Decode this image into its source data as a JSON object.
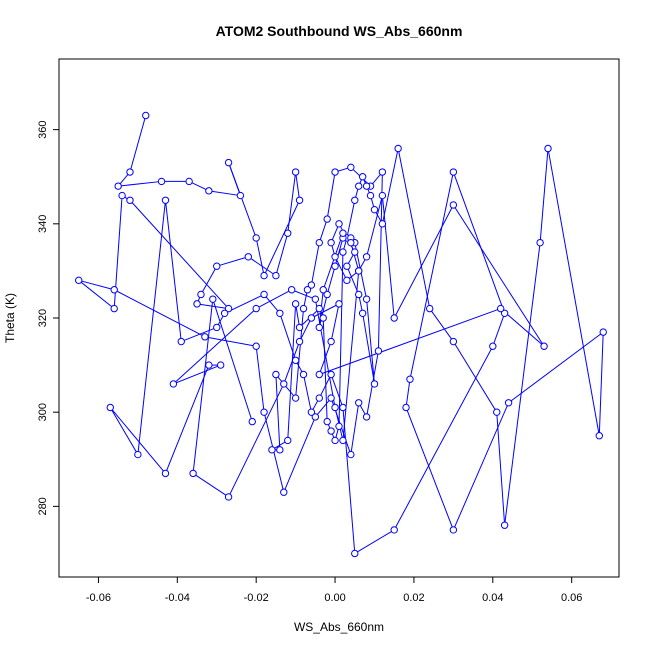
{
  "chart_data": {
    "type": "line",
    "title": "ATOM2 Southbound WS_Abs_660nm",
    "xlabel": "WS_Abs_660nm",
    "ylabel": "Theta (K)",
    "xlim": [
      -0.07,
      0.072
    ],
    "ylim": [
      265,
      375
    ],
    "xticks": [
      "-0.06",
      "-0.04",
      "-0.02",
      "0.00",
      "0.02",
      "0.04",
      "0.06"
    ],
    "xtick_values": [
      -0.06,
      -0.04,
      -0.02,
      0.0,
      0.02,
      0.04,
      0.06
    ],
    "yticks": [
      "280",
      "300",
      "320",
      "340",
      "360"
    ],
    "ytick_values": [
      280,
      300,
      320,
      340,
      360
    ],
    "marker": "open-circle",
    "series_color": "#0000ff",
    "grid": false,
    "series": [
      {
        "x": [
          -0.048,
          -0.052,
          -0.055,
          -0.044,
          -0.037,
          -0.032,
          -0.024,
          -0.027,
          -0.02,
          -0.018,
          -0.009,
          -0.01,
          -0.012,
          -0.015,
          -0.022,
          -0.03,
          -0.034,
          -0.035,
          -0.027,
          -0.052,
          -0.054,
          -0.056,
          -0.065,
          -0.056,
          -0.033,
          -0.02,
          -0.018,
          -0.013,
          -0.005,
          -0.001,
          0.004,
          0.006,
          0.008,
          0.011,
          0.012,
          0.009,
          0.004,
          0.0,
          -0.002,
          -0.004,
          -0.006,
          -0.007,
          -0.008,
          -0.01,
          -0.015,
          -0.014,
          -0.016,
          -0.012,
          -0.01,
          -0.009,
          -0.004,
          -0.003,
          -0.002,
          -0.001,
          0.0,
          0.001,
          0.002,
          0.003,
          0.005,
          0.006,
          0.007,
          0.008,
          0.009,
          0.01,
          0.012,
          0.016,
          0.024,
          0.03,
          0.041,
          0.043,
          0.052,
          0.054,
          0.067,
          0.068,
          0.044,
          0.03,
          0.018,
          0.019,
          0.03,
          0.043,
          0.04,
          0.015,
          0.005,
          0.002,
          -0.001,
          -0.004,
          -0.006,
          -0.008,
          -0.01,
          -0.014,
          -0.018,
          -0.028,
          -0.03,
          -0.039,
          -0.043,
          -0.05,
          -0.057,
          -0.043,
          -0.032,
          -0.029,
          -0.041,
          -0.02,
          -0.011,
          -0.005,
          0.0,
          0.002,
          0.006,
          0.003,
          0.0,
          -0.001,
          0.001,
          0.005,
          0.003,
          0.006,
          0.007,
          0.01,
          0.008,
          0.005,
          0.004,
          0.002,
          0.0,
          -0.002,
          -0.004,
          -0.003,
          0.002,
          0.004,
          0.006,
          0.008,
          0.012,
          0.015,
          0.03,
          0.053,
          0.042,
          -0.004,
          -0.001,
          0.001,
          -0.006,
          -0.009,
          -0.013,
          -0.027,
          -0.036,
          -0.031,
          -0.021
        ],
        "y": [
          363,
          351,
          348,
          349,
          349,
          347,
          346,
          353,
          337,
          329,
          345,
          351,
          338,
          329,
          333,
          331,
          325,
          323,
          322,
          345,
          346,
          322,
          328,
          326,
          316,
          314,
          300,
          283,
          299,
          303,
          291,
          302,
          299,
          313,
          351,
          348,
          352,
          351,
          341,
          336,
          327,
          326,
          322,
          303,
          308,
          292,
          292,
          294,
          323,
          318,
          322,
          320,
          298,
          296,
          294,
          297,
          334,
          337,
          345,
          348,
          350,
          348,
          346,
          343,
          340,
          356,
          322,
          315,
          300,
          276,
          336,
          356,
          295,
          317,
          302,
          275,
          301,
          307,
          351,
          321,
          314,
          275,
          270,
          301,
          308,
          303,
          300,
          308,
          311,
          321,
          325,
          321,
          318,
          315,
          345,
          291,
          301,
          287,
          310,
          310,
          306,
          322,
          326,
          324,
          301,
          294,
          330,
          328,
          333,
          336,
          340,
          334,
          331,
          325,
          321,
          306,
          324,
          336,
          337,
          337,
          331,
          325,
          318,
          326,
          338,
          336,
          330,
          333,
          346,
          320,
          344,
          314,
          322,
          308,
          315,
          323,
          320,
          315,
          306,
          282,
          287,
          324,
          298
        ]
      }
    ]
  }
}
